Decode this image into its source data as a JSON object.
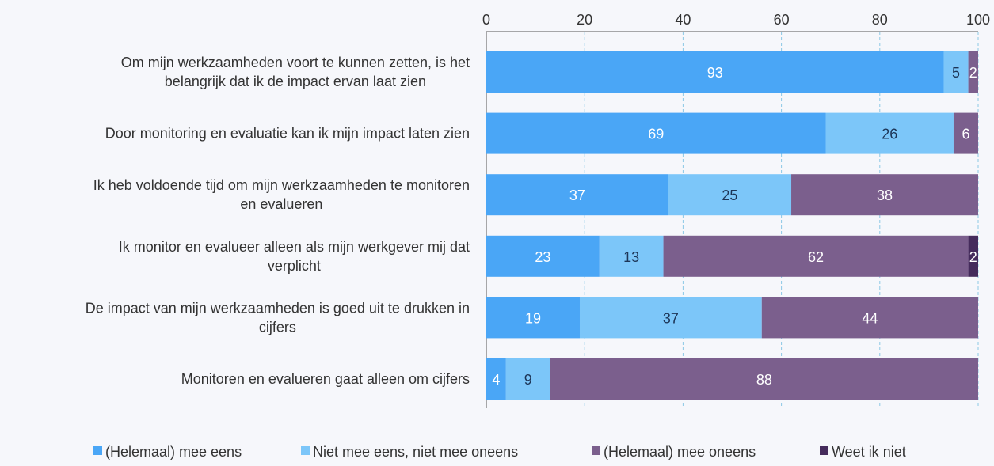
{
  "chart_data": {
    "type": "bar",
    "orientation": "horizontal",
    "stacked": true,
    "xlim": [
      0,
      100
    ],
    "xticks": [
      0,
      20,
      40,
      60,
      80,
      100
    ],
    "axis_position": "top",
    "grid": true,
    "legend_position": "bottom",
    "categories": [
      [
        "Om mijn werkzaamheden voort te kunnen zetten, is het",
        "belangrijk dat ik de impact ervan laat zien"
      ],
      [
        "Door monitoring en evaluatie kan ik mijn impact laten zien"
      ],
      [
        "Ik heb voldoende tijd om mijn werkzaamheden te monitoren",
        "en evalueren"
      ],
      [
        "Ik monitor en evalueer alleen als mijn werkgever mij dat",
        "verplicht"
      ],
      [
        "De impact van mijn werkzaamheden is goed uit te drukken in",
        "cijfers"
      ],
      [
        "Monitoren en evalueren gaat alleen om cijfers"
      ]
    ],
    "series": [
      {
        "name": "(Helemaal) mee eens",
        "color": "#4aa6f6",
        "label_color": "#ffffff",
        "values": [
          93,
          69,
          37,
          23,
          19,
          4
        ]
      },
      {
        "name": "Niet mee eens, niet mee oneens",
        "color": "#7cc6f9",
        "label_color": "#1d3557",
        "values": [
          5,
          26,
          25,
          13,
          37,
          9
        ]
      },
      {
        "name": "(Helemaal) mee oneens",
        "color": "#7b5f8d",
        "label_color": "#ffffff",
        "values": [
          2,
          6,
          38,
          62,
          44,
          88
        ]
      },
      {
        "name": "Weet ik niet",
        "color": "#452b5c",
        "label_color": "#ffffff",
        "values": [
          0,
          0,
          0,
          2,
          0,
          0
        ]
      }
    ]
  }
}
